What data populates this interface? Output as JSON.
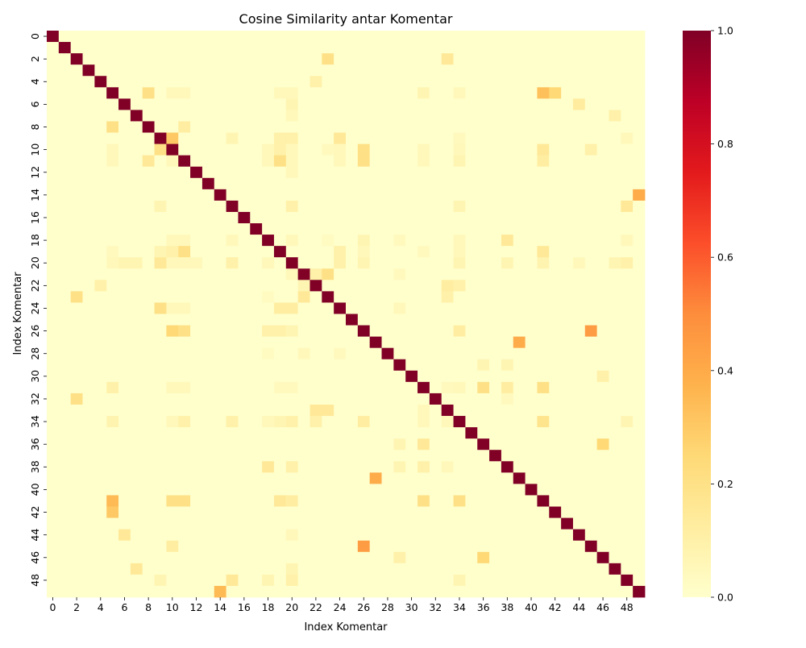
{
  "chart_data": {
    "type": "heatmap",
    "title": "Cosine Similarity antar Komentar",
    "xlabel": "Index Komentar",
    "ylabel": "Index Komentar",
    "size": 50,
    "x_tick_labels": [
      "0",
      "2",
      "4",
      "6",
      "8",
      "10",
      "12",
      "14",
      "16",
      "18",
      "20",
      "22",
      "24",
      "26",
      "28",
      "30",
      "32",
      "34",
      "36",
      "38",
      "40",
      "42",
      "44",
      "46",
      "48"
    ],
    "y_tick_labels": [
      "0",
      "2",
      "4",
      "6",
      "8",
      "10",
      "12",
      "14",
      "16",
      "18",
      "20",
      "22",
      "24",
      "26",
      "28",
      "30",
      "32",
      "34",
      "36",
      "38",
      "40",
      "42",
      "44",
      "46",
      "48"
    ],
    "colorbar": {
      "range": [
        0.0,
        1.0
      ],
      "tick_labels": [
        "0.0",
        "0.2",
        "0.4",
        "0.6",
        "0.8",
        "1.0"
      ],
      "colormap": "YlOrRd",
      "color_stops": [
        "#ffffcc",
        "#ffeda0",
        "#fed976",
        "#feb24c",
        "#fd8d3c",
        "#fc4e2a",
        "#e31a1c",
        "#bd0026",
        "#800026"
      ]
    },
    "grid": false,
    "diagonal_value": 1.0,
    "off_diagonal_cells": [
      [
        2,
        23,
        0.2
      ],
      [
        2,
        33,
        0.15
      ],
      [
        4,
        22,
        0.1
      ],
      [
        5,
        8,
        0.2
      ],
      [
        5,
        10,
        0.05
      ],
      [
        5,
        11,
        0.05
      ],
      [
        5,
        19,
        0.05
      ],
      [
        5,
        20,
        0.05
      ],
      [
        5,
        31,
        0.07
      ],
      [
        5,
        34,
        0.05
      ],
      [
        5,
        41,
        0.33
      ],
      [
        5,
        42,
        0.25
      ],
      [
        6,
        20,
        0.07
      ],
      [
        6,
        44,
        0.13
      ],
      [
        7,
        20,
        0.05
      ],
      [
        7,
        47,
        0.1
      ],
      [
        8,
        5,
        0.2
      ],
      [
        8,
        11,
        0.12
      ],
      [
        9,
        15,
        0.07
      ],
      [
        9,
        19,
        0.1
      ],
      [
        9,
        20,
        0.1
      ],
      [
        9,
        10,
        0.3
      ],
      [
        9,
        24,
        0.15
      ],
      [
        9,
        34,
        0.04
      ],
      [
        9,
        48,
        0.05
      ],
      [
        10,
        5,
        0.05
      ],
      [
        10,
        9,
        0.2
      ],
      [
        10,
        18,
        0.05
      ],
      [
        10,
        19,
        0.1
      ],
      [
        10,
        20,
        0.05
      ],
      [
        10,
        23,
        0.04
      ],
      [
        10,
        24,
        0.05
      ],
      [
        10,
        26,
        0.2
      ],
      [
        10,
        31,
        0.05
      ],
      [
        10,
        34,
        0.05
      ],
      [
        10,
        41,
        0.15
      ],
      [
        10,
        45,
        0.1
      ],
      [
        11,
        5,
        0.05
      ],
      [
        11,
        8,
        0.15
      ],
      [
        11,
        10,
        0.05
      ],
      [
        11,
        18,
        0.05
      ],
      [
        11,
        19,
        0.2
      ],
      [
        11,
        20,
        0.05
      ],
      [
        11,
        24,
        0.05
      ],
      [
        11,
        26,
        0.2
      ],
      [
        11,
        31,
        0.05
      ],
      [
        11,
        34,
        0.07
      ],
      [
        11,
        41,
        0.12
      ],
      [
        12,
        20,
        0.05
      ],
      [
        14,
        49,
        0.4
      ],
      [
        15,
        9,
        0.07
      ],
      [
        15,
        20,
        0.1
      ],
      [
        15,
        34,
        0.07
      ],
      [
        15,
        48,
        0.15
      ],
      [
        18,
        10,
        0.05
      ],
      [
        18,
        11,
        0.05
      ],
      [
        18,
        15,
        0.05
      ],
      [
        18,
        20,
        0.05
      ],
      [
        18,
        23,
        0.03
      ],
      [
        18,
        26,
        0.07
      ],
      [
        18,
        29,
        0.04
      ],
      [
        18,
        34,
        0.05
      ],
      [
        18,
        38,
        0.15
      ],
      [
        18,
        48,
        0.05
      ],
      [
        19,
        5,
        0.04
      ],
      [
        19,
        9,
        0.07
      ],
      [
        19,
        10,
        0.1
      ],
      [
        19,
        11,
        0.2
      ],
      [
        19,
        24,
        0.1
      ],
      [
        19,
        26,
        0.05
      ],
      [
        19,
        31,
        0.04
      ],
      [
        19,
        34,
        0.05
      ],
      [
        19,
        41,
        0.15
      ],
      [
        20,
        5,
        0.05
      ],
      [
        20,
        6,
        0.07
      ],
      [
        20,
        7,
        0.07
      ],
      [
        20,
        9,
        0.15
      ],
      [
        20,
        10,
        0.05
      ],
      [
        20,
        11,
        0.05
      ],
      [
        20,
        12,
        0.05
      ],
      [
        20,
        15,
        0.1
      ],
      [
        20,
        18,
        0.05
      ],
      [
        20,
        24,
        0.1
      ],
      [
        20,
        26,
        0.07
      ],
      [
        20,
        34,
        0.07
      ],
      [
        20,
        38,
        0.07
      ],
      [
        20,
        41,
        0.08
      ],
      [
        20,
        44,
        0.05
      ],
      [
        20,
        47,
        0.07
      ],
      [
        20,
        48,
        0.1
      ],
      [
        21,
        20,
        0.05
      ],
      [
        21,
        22,
        0.1
      ],
      [
        21,
        23,
        0.2
      ],
      [
        21,
        29,
        0.04
      ],
      [
        22,
        4,
        0.1
      ],
      [
        22,
        21,
        0.07
      ],
      [
        22,
        33,
        0.12
      ],
      [
        22,
        34,
        0.1
      ],
      [
        23,
        2,
        0.2
      ],
      [
        23,
        18,
        0.03
      ],
      [
        23,
        21,
        0.15
      ],
      [
        23,
        33,
        0.1
      ],
      [
        24,
        9,
        0.2
      ],
      [
        24,
        10,
        0.05
      ],
      [
        24,
        11,
        0.05
      ],
      [
        24,
        19,
        0.12
      ],
      [
        24,
        20,
        0.12
      ],
      [
        24,
        29,
        0.05
      ],
      [
        26,
        10,
        0.25
      ],
      [
        26,
        11,
        0.2
      ],
      [
        26,
        18,
        0.1
      ],
      [
        26,
        19,
        0.1
      ],
      [
        26,
        20,
        0.07
      ],
      [
        26,
        34,
        0.12
      ],
      [
        26,
        45,
        0.45
      ],
      [
        27,
        39,
        0.4
      ],
      [
        28,
        18,
        0.03
      ],
      [
        28,
        21,
        0.05
      ],
      [
        28,
        24,
        0.04
      ],
      [
        29,
        36,
        0.07
      ],
      [
        29,
        38,
        0.07
      ],
      [
        30,
        46,
        0.1
      ],
      [
        31,
        5,
        0.1
      ],
      [
        31,
        10,
        0.05
      ],
      [
        31,
        11,
        0.05
      ],
      [
        31,
        19,
        0.04
      ],
      [
        31,
        20,
        0.04
      ],
      [
        31,
        33,
        0.04
      ],
      [
        31,
        34,
        0.05
      ],
      [
        31,
        36,
        0.2
      ],
      [
        31,
        38,
        0.12
      ],
      [
        31,
        41,
        0.2
      ],
      [
        32,
        2,
        0.2
      ],
      [
        32,
        38,
        0.04
      ],
      [
        33,
        22,
        0.15
      ],
      [
        33,
        23,
        0.15
      ],
      [
        33,
        31,
        0.05
      ],
      [
        34,
        5,
        0.08
      ],
      [
        34,
        10,
        0.05
      ],
      [
        34,
        11,
        0.1
      ],
      [
        34,
        15,
        0.1
      ],
      [
        34,
        18,
        0.05
      ],
      [
        34,
        19,
        0.07
      ],
      [
        34,
        20,
        0.1
      ],
      [
        34,
        22,
        0.1
      ],
      [
        34,
        26,
        0.12
      ],
      [
        34,
        31,
        0.05
      ],
      [
        34,
        33,
        0.05
      ],
      [
        34,
        41,
        0.18
      ],
      [
        34,
        48,
        0.07
      ],
      [
        36,
        29,
        0.07
      ],
      [
        36,
        31,
        0.15
      ],
      [
        36,
        46,
        0.25
      ],
      [
        38,
        18,
        0.15
      ],
      [
        38,
        20,
        0.1
      ],
      [
        38,
        29,
        0.07
      ],
      [
        38,
        31,
        0.1
      ],
      [
        38,
        33,
        0.05
      ],
      [
        39,
        27,
        0.4
      ],
      [
        41,
        5,
        0.35
      ],
      [
        41,
        10,
        0.2
      ],
      [
        41,
        11,
        0.2
      ],
      [
        41,
        19,
        0.15
      ],
      [
        41,
        20,
        0.12
      ],
      [
        41,
        31,
        0.2
      ],
      [
        41,
        34,
        0.2
      ],
      [
        42,
        5,
        0.3
      ],
      [
        44,
        6,
        0.15
      ],
      [
        44,
        20,
        0.05
      ],
      [
        45,
        10,
        0.12
      ],
      [
        45,
        26,
        0.45
      ],
      [
        46,
        29,
        0.1
      ],
      [
        46,
        36,
        0.25
      ],
      [
        47,
        7,
        0.15
      ],
      [
        47,
        20,
        0.07
      ],
      [
        48,
        9,
        0.07
      ],
      [
        48,
        15,
        0.15
      ],
      [
        48,
        18,
        0.07
      ],
      [
        48,
        20,
        0.1
      ],
      [
        48,
        34,
        0.07
      ],
      [
        49,
        14,
        0.35
      ]
    ]
  }
}
